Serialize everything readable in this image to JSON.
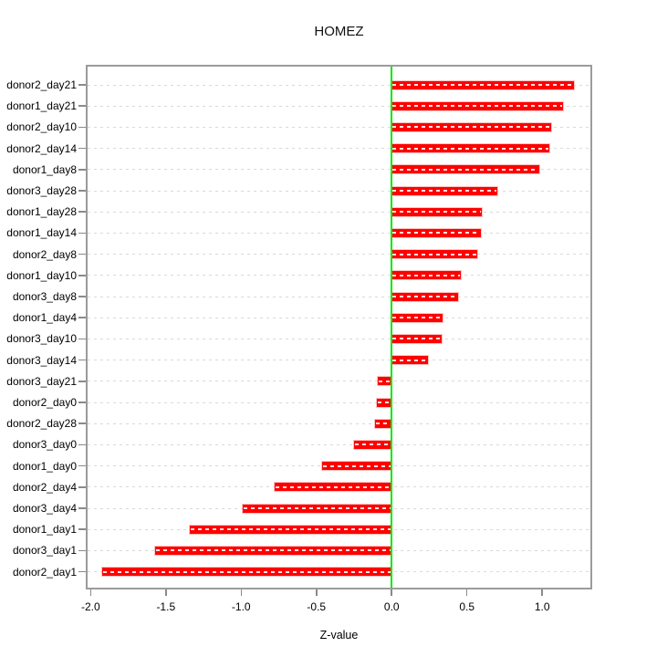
{
  "chart_data": {
    "type": "bar",
    "orientation": "horizontal",
    "title": "HOMEZ",
    "xlabel": "Z-value",
    "ylabel": "",
    "categories": [
      "donor2_day21",
      "donor1_day21",
      "donor2_day10",
      "donor2_day14",
      "donor1_day8",
      "donor3_day28",
      "donor1_day28",
      "donor1_day14",
      "donor2_day8",
      "donor1_day10",
      "donor3_day8",
      "donor1_day4",
      "donor3_day10",
      "donor3_day14",
      "donor3_day21",
      "donor2_day0",
      "donor2_day28",
      "donor3_day0",
      "donor1_day0",
      "donor2_day4",
      "donor3_day4",
      "donor1_day1",
      "donor3_day1",
      "donor2_day1"
    ],
    "values": [
      1.21,
      1.14,
      1.06,
      1.05,
      0.98,
      0.7,
      0.6,
      0.59,
      0.57,
      0.46,
      0.44,
      0.34,
      0.33,
      0.24,
      -0.09,
      -0.1,
      -0.11,
      -0.25,
      -0.46,
      -0.78,
      -0.99,
      -1.34,
      -1.57,
      -1.92
    ],
    "xlim": [
      -2.02,
      1.32
    ],
    "xticks": [
      -2.0,
      -1.5,
      -1.0,
      -0.5,
      0.0,
      0.5,
      1.0
    ],
    "xtick_labels": [
      "-2.0",
      "-1.5",
      "-1.0",
      "-0.5",
      "0.0",
      "0.5",
      "1.0"
    ],
    "grid": true,
    "grid_style": "dashed",
    "legend": "none",
    "bar_color": "#ff0000",
    "zero_line_value": 0,
    "zero_line_color": "#00e606",
    "grid_color": "#d9d9d9",
    "box_color": "#9b9b9b"
  }
}
